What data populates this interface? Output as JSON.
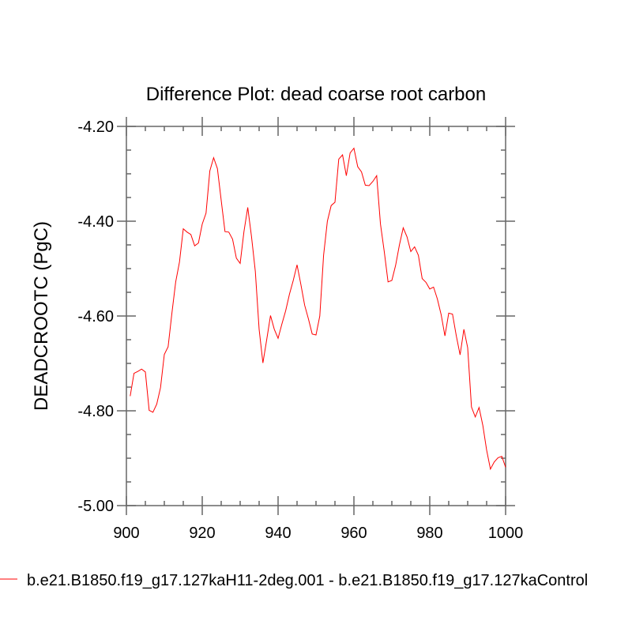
{
  "chart_data": {
    "type": "line",
    "title": "Difference Plot: dead coarse root carbon",
    "xlabel": "",
    "ylabel": "DEADCROOTC  (PgC)",
    "xlim": [
      900,
      1000
    ],
    "ylim": [
      -5.0,
      -4.2
    ],
    "x_ticks": [
      900,
      920,
      940,
      960,
      980,
      1000
    ],
    "x_tick_labels": [
      "900",
      "920",
      "940",
      "960",
      "980",
      "1000"
    ],
    "y_ticks": [
      -5.0,
      -4.8,
      -4.6,
      -4.4,
      -4.2
    ],
    "y_tick_labels": [
      "-5.00",
      "-4.80",
      "-4.60",
      "-4.40",
      "-4.20"
    ],
    "grid": false,
    "legend_placement": "bottom",
    "series": [
      {
        "name": "b.e21.B1850.f19_g17.127kaH11-2deg.001 - b.e21.B1850.f19_g17.127kaControl",
        "color": "#ff0000",
        "x_start": 901,
        "x_step": 1,
        "values": [
          -4.769,
          -4.721,
          -4.717,
          -4.712,
          -4.718,
          -4.799,
          -4.803,
          -4.786,
          -4.751,
          -4.681,
          -4.665,
          -4.594,
          -4.528,
          -4.486,
          -4.416,
          -4.423,
          -4.428,
          -4.452,
          -4.446,
          -4.406,
          -4.383,
          -4.294,
          -4.266,
          -4.289,
          -4.356,
          -4.422,
          -4.423,
          -4.438,
          -4.478,
          -4.489,
          -4.422,
          -4.371,
          -4.433,
          -4.506,
          -4.628,
          -4.699,
          -4.65,
          -4.599,
          -4.628,
          -4.647,
          -4.617,
          -4.589,
          -4.554,
          -4.525,
          -4.492,
          -4.533,
          -4.577,
          -4.606,
          -4.638,
          -4.64,
          -4.6,
          -4.472,
          -4.4,
          -4.367,
          -4.36,
          -4.269,
          -4.26,
          -4.304,
          -4.256,
          -4.246,
          -4.285,
          -4.296,
          -4.324,
          -4.325,
          -4.316,
          -4.304,
          -4.406,
          -4.464,
          -4.528,
          -4.525,
          -4.493,
          -4.45,
          -4.414,
          -4.433,
          -4.464,
          -4.454,
          -4.472,
          -4.521,
          -4.529,
          -4.543,
          -4.539,
          -4.564,
          -4.597,
          -4.642,
          -4.594,
          -4.596,
          -4.642,
          -4.682,
          -4.628,
          -4.667,
          -4.792,
          -4.813,
          -4.793,
          -4.831,
          -4.883,
          -4.923,
          -4.908,
          -4.899,
          -4.896,
          -4.919
        ]
      }
    ]
  },
  "colors": {
    "axis": "#666666",
    "line": "#ff0000"
  }
}
